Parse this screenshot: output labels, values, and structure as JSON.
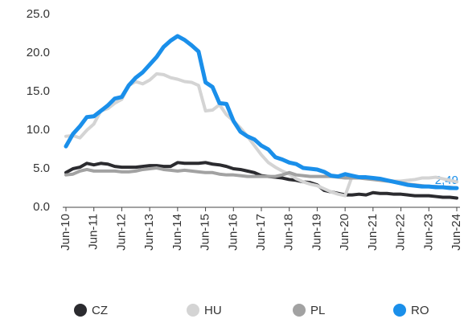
{
  "chart_data": {
    "type": "line",
    "categories": [
      "Jun-10",
      null,
      null,
      null,
      "Jun-11",
      null,
      null,
      null,
      "Jun-12",
      null,
      null,
      null,
      "Jun-13",
      null,
      null,
      null,
      "Jun-14",
      null,
      null,
      null,
      "Jun-15",
      null,
      null,
      null,
      "Jun-16",
      null,
      null,
      null,
      "Jun-17",
      null,
      null,
      null,
      "Jun-18",
      null,
      null,
      null,
      "Jun-19",
      null,
      null,
      null,
      "Jun-20",
      null,
      null,
      null,
      "Jun-21",
      null,
      null,
      null,
      "Jun-22",
      null,
      null,
      null,
      "Jun-23",
      null,
      null,
      null,
      "Jun-24"
    ],
    "series": [
      {
        "name": "CZ",
        "color": "#2b2b2f",
        "values": [
          4.5,
          5.0,
          5.2,
          5.7,
          5.5,
          5.7,
          5.6,
          5.3,
          5.2,
          5.2,
          5.2,
          5.3,
          5.4,
          5.4,
          5.3,
          5.3,
          5.8,
          5.7,
          5.7,
          5.7,
          5.8,
          5.6,
          5.5,
          5.3,
          5.0,
          4.9,
          4.7,
          4.5,
          4.1,
          4.0,
          3.9,
          3.8,
          3.6,
          3.5,
          3.3,
          3.2,
          2.9,
          2.2,
          2.0,
          1.8,
          1.6,
          1.6,
          1.7,
          1.6,
          1.9,
          1.8,
          1.8,
          1.7,
          1.7,
          1.6,
          1.5,
          1.5,
          1.5,
          1.4,
          1.3,
          1.3,
          1.2
        ]
      },
      {
        "name": "HU",
        "color": "#d4d4d4",
        "values": [
          9.2,
          9.3,
          9.0,
          10.0,
          10.8,
          12.5,
          12.8,
          13.5,
          14.0,
          15.8,
          16.3,
          16.0,
          16.5,
          17.3,
          17.2,
          16.8,
          16.6,
          16.3,
          16.2,
          15.8,
          12.5,
          12.6,
          13.3,
          12.0,
          11.2,
          10.3,
          9.2,
          8.0,
          6.8,
          5.8,
          5.2,
          4.7,
          4.3,
          3.7,
          3.3,
          3.0,
          2.8,
          2.4,
          2.0,
          1.7,
          1.5,
          4.0,
          3.9,
          3.8,
          3.7,
          3.6,
          3.5,
          3.4,
          3.4,
          3.5,
          3.6,
          3.8,
          3.8,
          3.9,
          3.7,
          3.5,
          3.3
        ]
      },
      {
        "name": "PL",
        "color": "#a2a2a2",
        "values": [
          4.2,
          4.3,
          4.7,
          4.9,
          4.7,
          4.7,
          4.7,
          4.7,
          4.6,
          4.6,
          4.7,
          4.9,
          5.0,
          5.1,
          4.9,
          4.8,
          4.7,
          4.8,
          4.7,
          4.6,
          4.5,
          4.5,
          4.3,
          4.2,
          4.2,
          4.1,
          4.0,
          4.0,
          4.0,
          4.0,
          4.0,
          4.2,
          4.5,
          4.2,
          4.1,
          4.0,
          4.0,
          4.0,
          4.0,
          3.9,
          3.8,
          3.8,
          3.8,
          3.7,
          3.6,
          3.5,
          3.4,
          3.3,
          3.2,
          3.0,
          2.9,
          2.8,
          2.7,
          2.7,
          2.6,
          2.6,
          2.5
        ]
      },
      {
        "name": "RO",
        "color": "#1a8fea",
        "values": [
          7.9,
          9.5,
          10.5,
          11.7,
          11.8,
          12.5,
          13.2,
          14.1,
          14.3,
          15.8,
          16.8,
          17.5,
          18.5,
          19.5,
          20.8,
          21.6,
          22.2,
          21.7,
          21.0,
          20.2,
          16.2,
          15.6,
          13.5,
          13.4,
          11.2,
          9.8,
          9.2,
          8.8,
          8.0,
          7.5,
          6.5,
          6.2,
          5.8,
          5.6,
          5.1,
          5.0,
          4.9,
          4.6,
          4.1,
          4.0,
          4.3,
          4.1,
          3.9,
          3.9,
          3.8,
          3.7,
          3.5,
          3.3,
          3.1,
          2.9,
          2.8,
          2.7,
          2.7,
          2.6,
          2.6,
          2.5,
          2.49
        ]
      }
    ],
    "annotation": "2,49",
    "ylim": [
      0,
      25
    ],
    "yticks": [
      {
        "value": 0,
        "label": "0.0"
      },
      {
        "value": 5,
        "label": "5.0"
      },
      {
        "value": 10,
        "label": "10.0"
      },
      {
        "value": 15,
        "label": "15.0"
      },
      {
        "value": 20,
        "label": "20.0"
      },
      {
        "value": 25,
        "label": "25.0"
      }
    ],
    "grid": false,
    "legend": "bottom"
  }
}
